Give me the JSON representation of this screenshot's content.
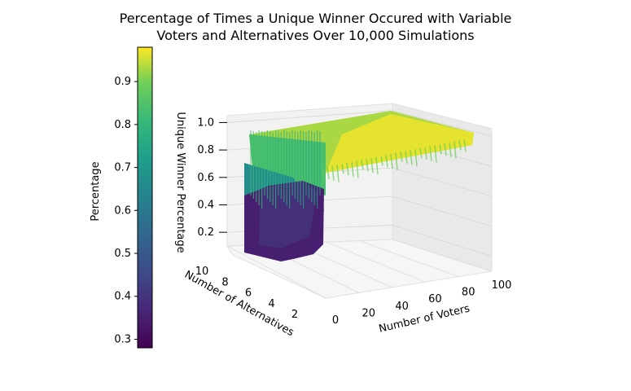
{
  "chart_data": {
    "type": "surface3d",
    "title_line1": "Percentage of Times a Unique Winner Occured with Variable",
    "title_line2": "Voters and Alternatives Over 10,000 Simulations",
    "xlabel": "Number of Voters",
    "ylabel": "Number of Alternatives",
    "zlabel": "Unique Winner Percentage",
    "colorbar_label": "Percentage",
    "colormap": "viridis",
    "x_ticks": [
      "0",
      "20",
      "40",
      "60",
      "80",
      "100"
    ],
    "y_ticks": [
      "2",
      "4",
      "6",
      "8",
      "10"
    ],
    "z_ticks": [
      "0.2",
      "0.4",
      "0.6",
      "0.8",
      "1.0"
    ],
    "colorbar_ticks": [
      "0.3",
      "0.4",
      "0.5",
      "0.6",
      "0.7",
      "0.8",
      "0.9"
    ],
    "colorbar_range": [
      0.28,
      0.98
    ],
    "xlim": [
      0,
      100
    ],
    "ylim": [
      2,
      10
    ],
    "zlim": [
      0.1,
      1.05
    ],
    "surface_description": "Surface rises from ~0.2-0.4 at low voter counts with many alternatives to ~0.95-1.0 plateau for higher voter counts"
  },
  "colors": {
    "low": "#440154",
    "mid": "#21918c",
    "high": "#fde725",
    "pane": "#f2f2f2",
    "grid": "#d9d9d9"
  }
}
